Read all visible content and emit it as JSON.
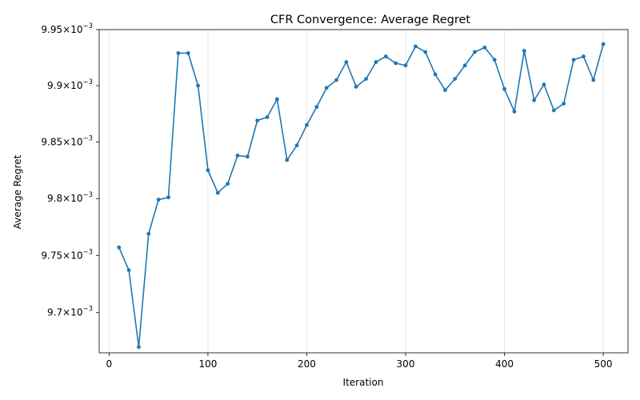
{
  "chart_data": {
    "type": "line",
    "title": "CFR Convergence: Average Regret",
    "xlabel": "Iteration",
    "ylabel": "Average Regret",
    "xlim": [
      -10,
      525
    ],
    "ylim": [
      0.009665,
      0.00995
    ],
    "x_ticks": [
      {
        "value": 0,
        "label": "0"
      },
      {
        "value": 100,
        "label": "100"
      },
      {
        "value": 200,
        "label": "200"
      },
      {
        "value": 300,
        "label": "300"
      },
      {
        "value": 400,
        "label": "400"
      },
      {
        "value": 500,
        "label": "500"
      }
    ],
    "y_ticks": [
      {
        "value": 0.0097,
        "mantissa": "9.7",
        "sup": "−3"
      },
      {
        "value": 0.00975,
        "mantissa": "9.75",
        "sup": "−3"
      },
      {
        "value": 0.0098,
        "mantissa": "9.8",
        "sup": "−3"
      },
      {
        "value": 0.00985,
        "mantissa": "9.85",
        "sup": "−3"
      },
      {
        "value": 0.0099,
        "mantissa": "9.9",
        "sup": "−3"
      },
      {
        "value": 0.00995,
        "mantissa": "9.95",
        "sup": "−3"
      }
    ],
    "tick_times_sign": "×",
    "tick_base": "10",
    "y_scale": "log",
    "grid": "x-vertical",
    "line_color": "#1f77b4",
    "series": [
      {
        "x": [
          10,
          20,
          30,
          40,
          50,
          60,
          70,
          80,
          90,
          100,
          110,
          120,
          130,
          140,
          150,
          160,
          170,
          180,
          190,
          200,
          210,
          220,
          230,
          240,
          250,
          260,
          270,
          280,
          290,
          300,
          310,
          320,
          330,
          340,
          350,
          360,
          370,
          380,
          390,
          400,
          410,
          420,
          430,
          440,
          450,
          460,
          470,
          480,
          490,
          500
        ],
        "y": [
          0.009757,
          0.009737,
          0.00967,
          0.009769,
          0.009799,
          0.009801,
          0.009929,
          0.009929,
          0.0099,
          0.009825,
          0.009805,
          0.009813,
          0.009838,
          0.009837,
          0.009869,
          0.009872,
          0.009888,
          0.009834,
          0.009847,
          0.009865,
          0.009881,
          0.009898,
          0.009905,
          0.009921,
          0.009899,
          0.009906,
          0.009921,
          0.009926,
          0.00992,
          0.009918,
          0.009935,
          0.00993,
          0.00991,
          0.009896,
          0.009906,
          0.009918,
          0.00993,
          0.009934,
          0.009923,
          0.009897,
          0.009877,
          0.009931,
          0.009887,
          0.009901,
          0.009878,
          0.009884,
          0.009923,
          0.009926,
          0.009905,
          0.009937
        ]
      }
    ]
  }
}
